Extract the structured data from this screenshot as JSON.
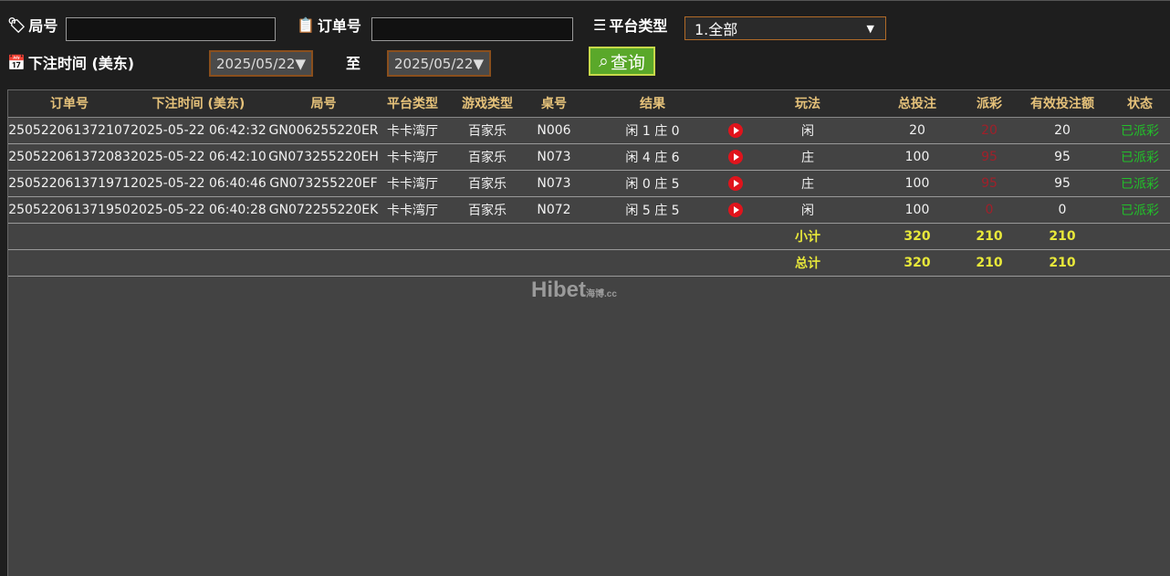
{
  "filters": {
    "round_label": "局号",
    "round_value": "",
    "order_label": "订单号",
    "order_value": "",
    "platform_label": "平台类型",
    "platform_value": "1.全部",
    "time_label": "下注时间 (美东)",
    "date_from": "2025/05/22▼",
    "to_label": "至",
    "date_to": "2025/05/22▼",
    "query_label": "查询"
  },
  "table": {
    "headers": [
      "订单号",
      "下注时间 (美东)",
      "局号",
      "平台类型",
      "游戏类型",
      "桌号",
      "结果",
      "",
      "玩法",
      "总投注",
      "派彩",
      "有效投注额",
      "状态"
    ],
    "rows": [
      [
        "250522061372107",
        "2025-05-22 06:42:32",
        "GN006255220ER",
        "卡卡湾厅",
        "百家乐",
        "N006",
        "闲 1 庄 0",
        "",
        "闲",
        "20",
        "20",
        "20",
        "已派彩"
      ],
      [
        "250522061372083",
        "2025-05-22 06:42:10",
        "GN073255220EH",
        "卡卡湾厅",
        "百家乐",
        "N073",
        "闲 4 庄 6",
        "",
        "庄",
        "100",
        "95",
        "95",
        "已派彩"
      ],
      [
        "250522061371971",
        "2025-05-22 06:40:46",
        "GN073255220EF",
        "卡卡湾厅",
        "百家乐",
        "N073",
        "闲 0 庄 5",
        "",
        "庄",
        "100",
        "95",
        "95",
        "已派彩"
      ],
      [
        "250522061371950",
        "2025-05-22 06:40:28",
        "GN072255220EK",
        "卡卡湾厅",
        "百家乐",
        "N072",
        "闲 5 庄 5",
        "",
        "闲",
        "100",
        "0",
        "0",
        "已派彩"
      ]
    ],
    "subtotal": {
      "label": "小计",
      "total_bet": "320",
      "payout": "210",
      "valid_bet": "210"
    },
    "total": {
      "label": "总计",
      "total_bet": "320",
      "payout": "210",
      "valid_bet": "210"
    }
  },
  "watermark": {
    "text": "Hibet",
    "suffix": "海博.cc"
  },
  "colors": {
    "header_text": "#e6c27a",
    "payout_red": "#a0202a",
    "status_green": "#22c02a",
    "sum_yellow": "#e8e83a",
    "query_button": "#5aa82a"
  }
}
